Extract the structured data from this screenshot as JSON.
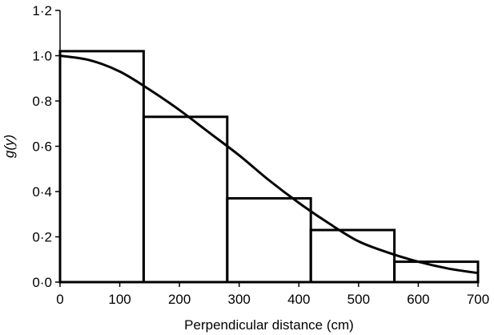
{
  "chart_data": {
    "type": "bar",
    "title": "",
    "xlabel": "Perpendicular distance (cm)",
    "ylabel": "g(y)",
    "xlim": [
      0,
      700
    ],
    "ylim": [
      0,
      1.2
    ],
    "grid": false,
    "x_ticks": [
      0,
      100,
      200,
      300,
      400,
      500,
      600,
      700
    ],
    "y_ticks": [
      "0·0",
      "0·2",
      "0·4",
      "0·6",
      "0·8",
      "1·0",
      "1·2"
    ],
    "histogram": {
      "bin_edges": [
        0,
        140,
        280,
        420,
        560,
        700
      ],
      "values": [
        1.02,
        0.73,
        0.37,
        0.23,
        0.09
      ]
    },
    "fitted_curve": {
      "x": [
        0,
        50,
        100,
        150,
        200,
        250,
        300,
        350,
        400,
        450,
        500,
        550,
        600,
        650,
        700
      ],
      "y": [
        1.0,
        0.98,
        0.93,
        0.85,
        0.76,
        0.66,
        0.56,
        0.45,
        0.35,
        0.26,
        0.18,
        0.13,
        0.09,
        0.06,
        0.04
      ]
    }
  }
}
